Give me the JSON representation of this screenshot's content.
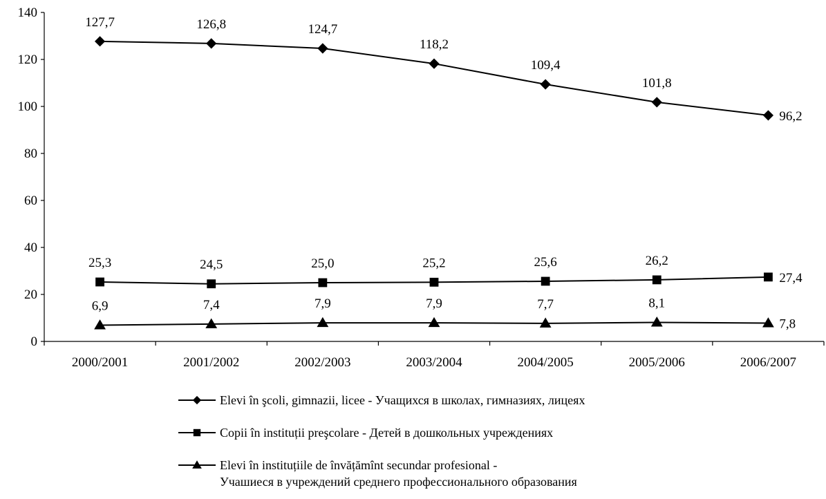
{
  "chart_data": {
    "type": "line",
    "title": "",
    "xlabel": "",
    "ylabel": "",
    "categories": [
      "2000/2001",
      "2001/2002",
      "2002/2003",
      "2003/2004",
      "2004/2005",
      "2005/2006",
      "2006/2007"
    ],
    "ylim": [
      0,
      140
    ],
    "yticks": [
      0,
      20,
      40,
      60,
      80,
      100,
      120,
      140
    ],
    "grid": false,
    "legend_position": "bottom",
    "series": [
      {
        "name": "Elevi în şcoli, gimnazii, licee - Учащихся в школах, гимназиях, лицеях",
        "marker": "diamond",
        "color": "#000000",
        "values": [
          127.7,
          126.8,
          124.7,
          118.2,
          109.4,
          101.8,
          96.2
        ],
        "labels": [
          "127,7",
          "126,8",
          "124,7",
          "118,2",
          "109,4",
          "101,8",
          "96,2"
        ]
      },
      {
        "name": "Copii în instituții preşcolare - Детей в дошкольных учреждениях",
        "marker": "square",
        "color": "#000000",
        "values": [
          25.3,
          24.5,
          25.0,
          25.2,
          25.6,
          26.2,
          27.4
        ],
        "labels": [
          "25,3",
          "24,5",
          "25,0",
          "25,2",
          "25,6",
          "26,2",
          "27,4"
        ]
      },
      {
        "name": "Elevi în instituțiile de învățămînt secundar profesional - Учашиеся в учреждений среднего профессионального образования",
        "name_lines": [
          "Elevi în instituțiile de învățămînt secundar profesional -",
          "Учашиеся в учреждений среднего профессионального образования"
        ],
        "marker": "triangle",
        "color": "#000000",
        "values": [
          6.9,
          7.4,
          7.9,
          7.9,
          7.7,
          8.1,
          7.8
        ],
        "labels": [
          "6,9",
          "7,4",
          "7,9",
          "7,9",
          "7,7",
          "8,1",
          "7,8"
        ]
      }
    ]
  }
}
